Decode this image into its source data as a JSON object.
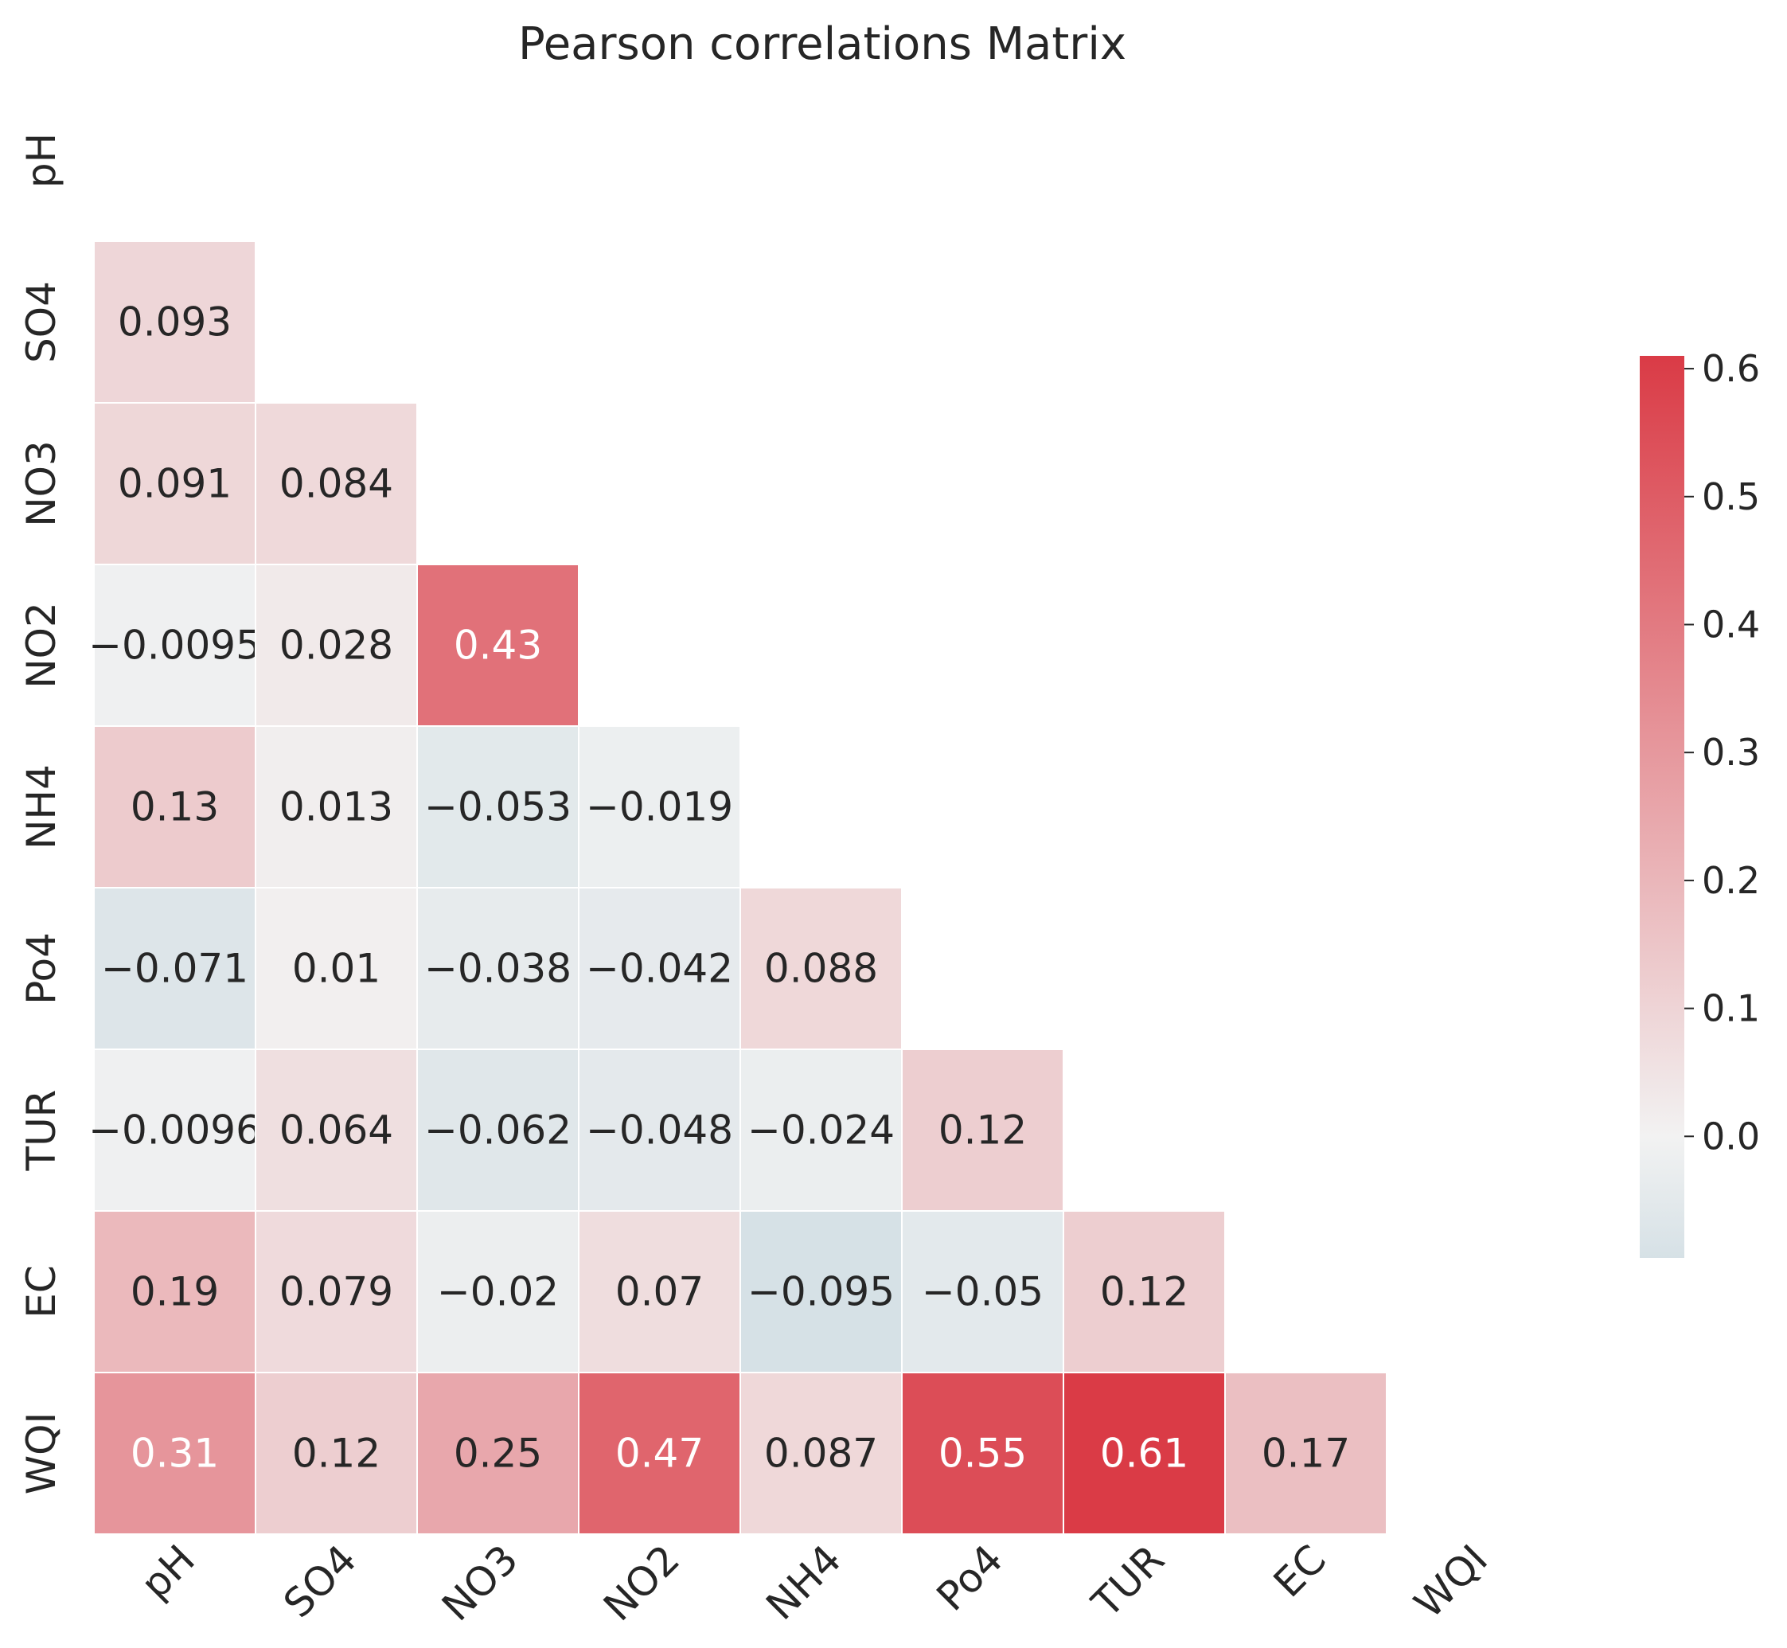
{
  "chart_data": {
    "type": "heatmap",
    "title": "Pearson correlations Matrix",
    "variables": [
      "pH",
      "SO4",
      "NO3",
      "NO2",
      "NH4",
      "Po4",
      "TUR",
      "EC",
      "WQI"
    ],
    "mask": "upper-triangle-including-diagonal",
    "matrix": [
      [],
      [
        0.093
      ],
      [
        0.091,
        0.084
      ],
      [
        -0.0095,
        0.028,
        0.43
      ],
      [
        0.13,
        0.013,
        -0.053,
        -0.019
      ],
      [
        -0.071,
        0.01,
        -0.038,
        -0.042,
        0.088
      ],
      [
        -0.0096,
        0.064,
        -0.062,
        -0.048,
        -0.024,
        0.12
      ],
      [
        0.19,
        0.079,
        -0.02,
        0.07,
        -0.095,
        -0.05,
        0.12
      ],
      [
        0.31,
        0.12,
        0.25,
        0.47,
        0.087,
        0.55,
        0.61,
        0.17
      ]
    ],
    "annotations": [
      [],
      [
        "0.093"
      ],
      [
        "0.091",
        "0.084"
      ],
      [
        "−0.0095",
        "0.028",
        "0.43"
      ],
      [
        "0.13",
        "0.013",
        "−0.053",
        "−0.019"
      ],
      [
        "−0.071",
        "0.01",
        "−0.038",
        "−0.042",
        "0.088"
      ],
      [
        "−0.0096",
        "0.064",
        "−0.062",
        "−0.048",
        "−0.024",
        "0.12"
      ],
      [
        "0.19",
        "0.079",
        "−0.02",
        "0.07",
        "−0.095",
        "−0.05",
        "0.12"
      ],
      [
        "0.31",
        "0.12",
        "0.25",
        "0.47",
        "0.087",
        "0.55",
        "0.61",
        "0.17"
      ]
    ],
    "colorbar": {
      "vmin": -0.095,
      "vmax": 0.61,
      "center": 0.0,
      "ticks": [
        0.0,
        0.1,
        0.2,
        0.3,
        0.4,
        0.5,
        0.6
      ],
      "tick_labels": [
        "0.0",
        "0.1",
        "0.2",
        "0.3",
        "0.4",
        "0.5",
        "0.6"
      ],
      "color_low": "#d6e1e6",
      "color_center": "#f2f2f2",
      "color_high": "#da3b46"
    }
  }
}
